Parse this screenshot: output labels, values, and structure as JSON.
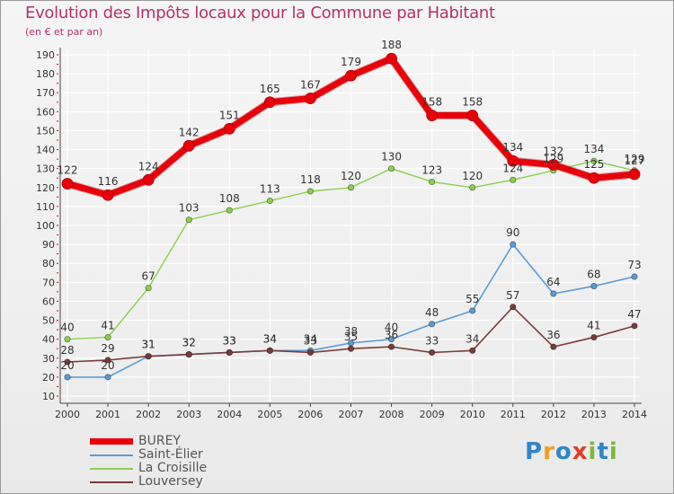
{
  "header": {
    "title": "Evolution des Impôts locaux pour la Commune par Habitant",
    "subtitle": "(en € et par an)"
  },
  "logo": {
    "text": "Proxiti",
    "letters": [
      "P",
      "r",
      "o",
      "x",
      "i",
      "t",
      "i"
    ],
    "colors": [
      "#2e86c8",
      "#f39c1f",
      "#2e86c8",
      "#e03c2b",
      "#7bb83a",
      "#2e86c8",
      "#7bb83a"
    ]
  },
  "chart_data": {
    "type": "line",
    "title": "Evolution des Impôts locaux pour la Commune par Habitant",
    "subtitle": "(en € et par an)",
    "xlabel": "",
    "ylabel": "",
    "categories": [
      "2000",
      "2001",
      "2002",
      "2003",
      "2004",
      "2005",
      "2006",
      "2007",
      "2008",
      "2009",
      "2010",
      "2011",
      "2012",
      "2013",
      "2014"
    ],
    "ylim": [
      10,
      190
    ],
    "yticks": [
      "10",
      "20",
      "30",
      "40",
      "50",
      "60",
      "70",
      "80",
      "90",
      "100",
      "110",
      "120",
      "130",
      "140",
      "150",
      "160",
      "170",
      "180",
      "190"
    ],
    "grid": true,
    "legend_position": "bottom-left",
    "series": [
      {
        "name": "BUREY",
        "color": "#e8000b",
        "values": [
          122,
          116,
          124,
          142,
          151,
          165,
          167,
          179,
          188,
          158,
          158,
          134,
          132,
          125,
          127
        ],
        "labels": [
          "122",
          "116",
          "124",
          "142",
          "151",
          "165",
          "167",
          "179",
          "188",
          "158",
          "158",
          "134",
          "132",
          "125",
          "127"
        ]
      },
      {
        "name": "Saint-Élier",
        "color": "#5b9bd5",
        "values": [
          20,
          20,
          31,
          32,
          33,
          34,
          34,
          38,
          40,
          48,
          55,
          90,
          64,
          68,
          73
        ],
        "labels": [
          "20",
          "20",
          "31",
          "32",
          "33",
          "34",
          "34",
          "38",
          "40",
          "48",
          "55",
          "90",
          "64",
          "68",
          "73"
        ]
      },
      {
        "name": "La Croisille",
        "color": "#8ccf4d",
        "values": [
          40,
          41,
          67,
          103,
          108,
          113,
          118,
          120,
          130,
          123,
          120,
          124,
          129,
          134,
          129
        ],
        "labels": [
          "40",
          "41",
          "67",
          "103",
          "108",
          "113",
          "118",
          "120",
          "130",
          "123",
          "120",
          "124",
          "129",
          "134",
          "129"
        ]
      },
      {
        "name": "Louversey",
        "color": "#7a3b3b",
        "values": [
          28,
          29,
          31,
          32,
          33,
          34,
          33,
          35,
          36,
          33,
          34,
          57,
          36,
          41,
          47
        ],
        "labels": [
          "28",
          "29",
          "31",
          "32",
          "33",
          "34",
          "33",
          "35",
          "36",
          "33",
          "34",
          "57",
          "36",
          "41",
          "47"
        ]
      }
    ]
  }
}
